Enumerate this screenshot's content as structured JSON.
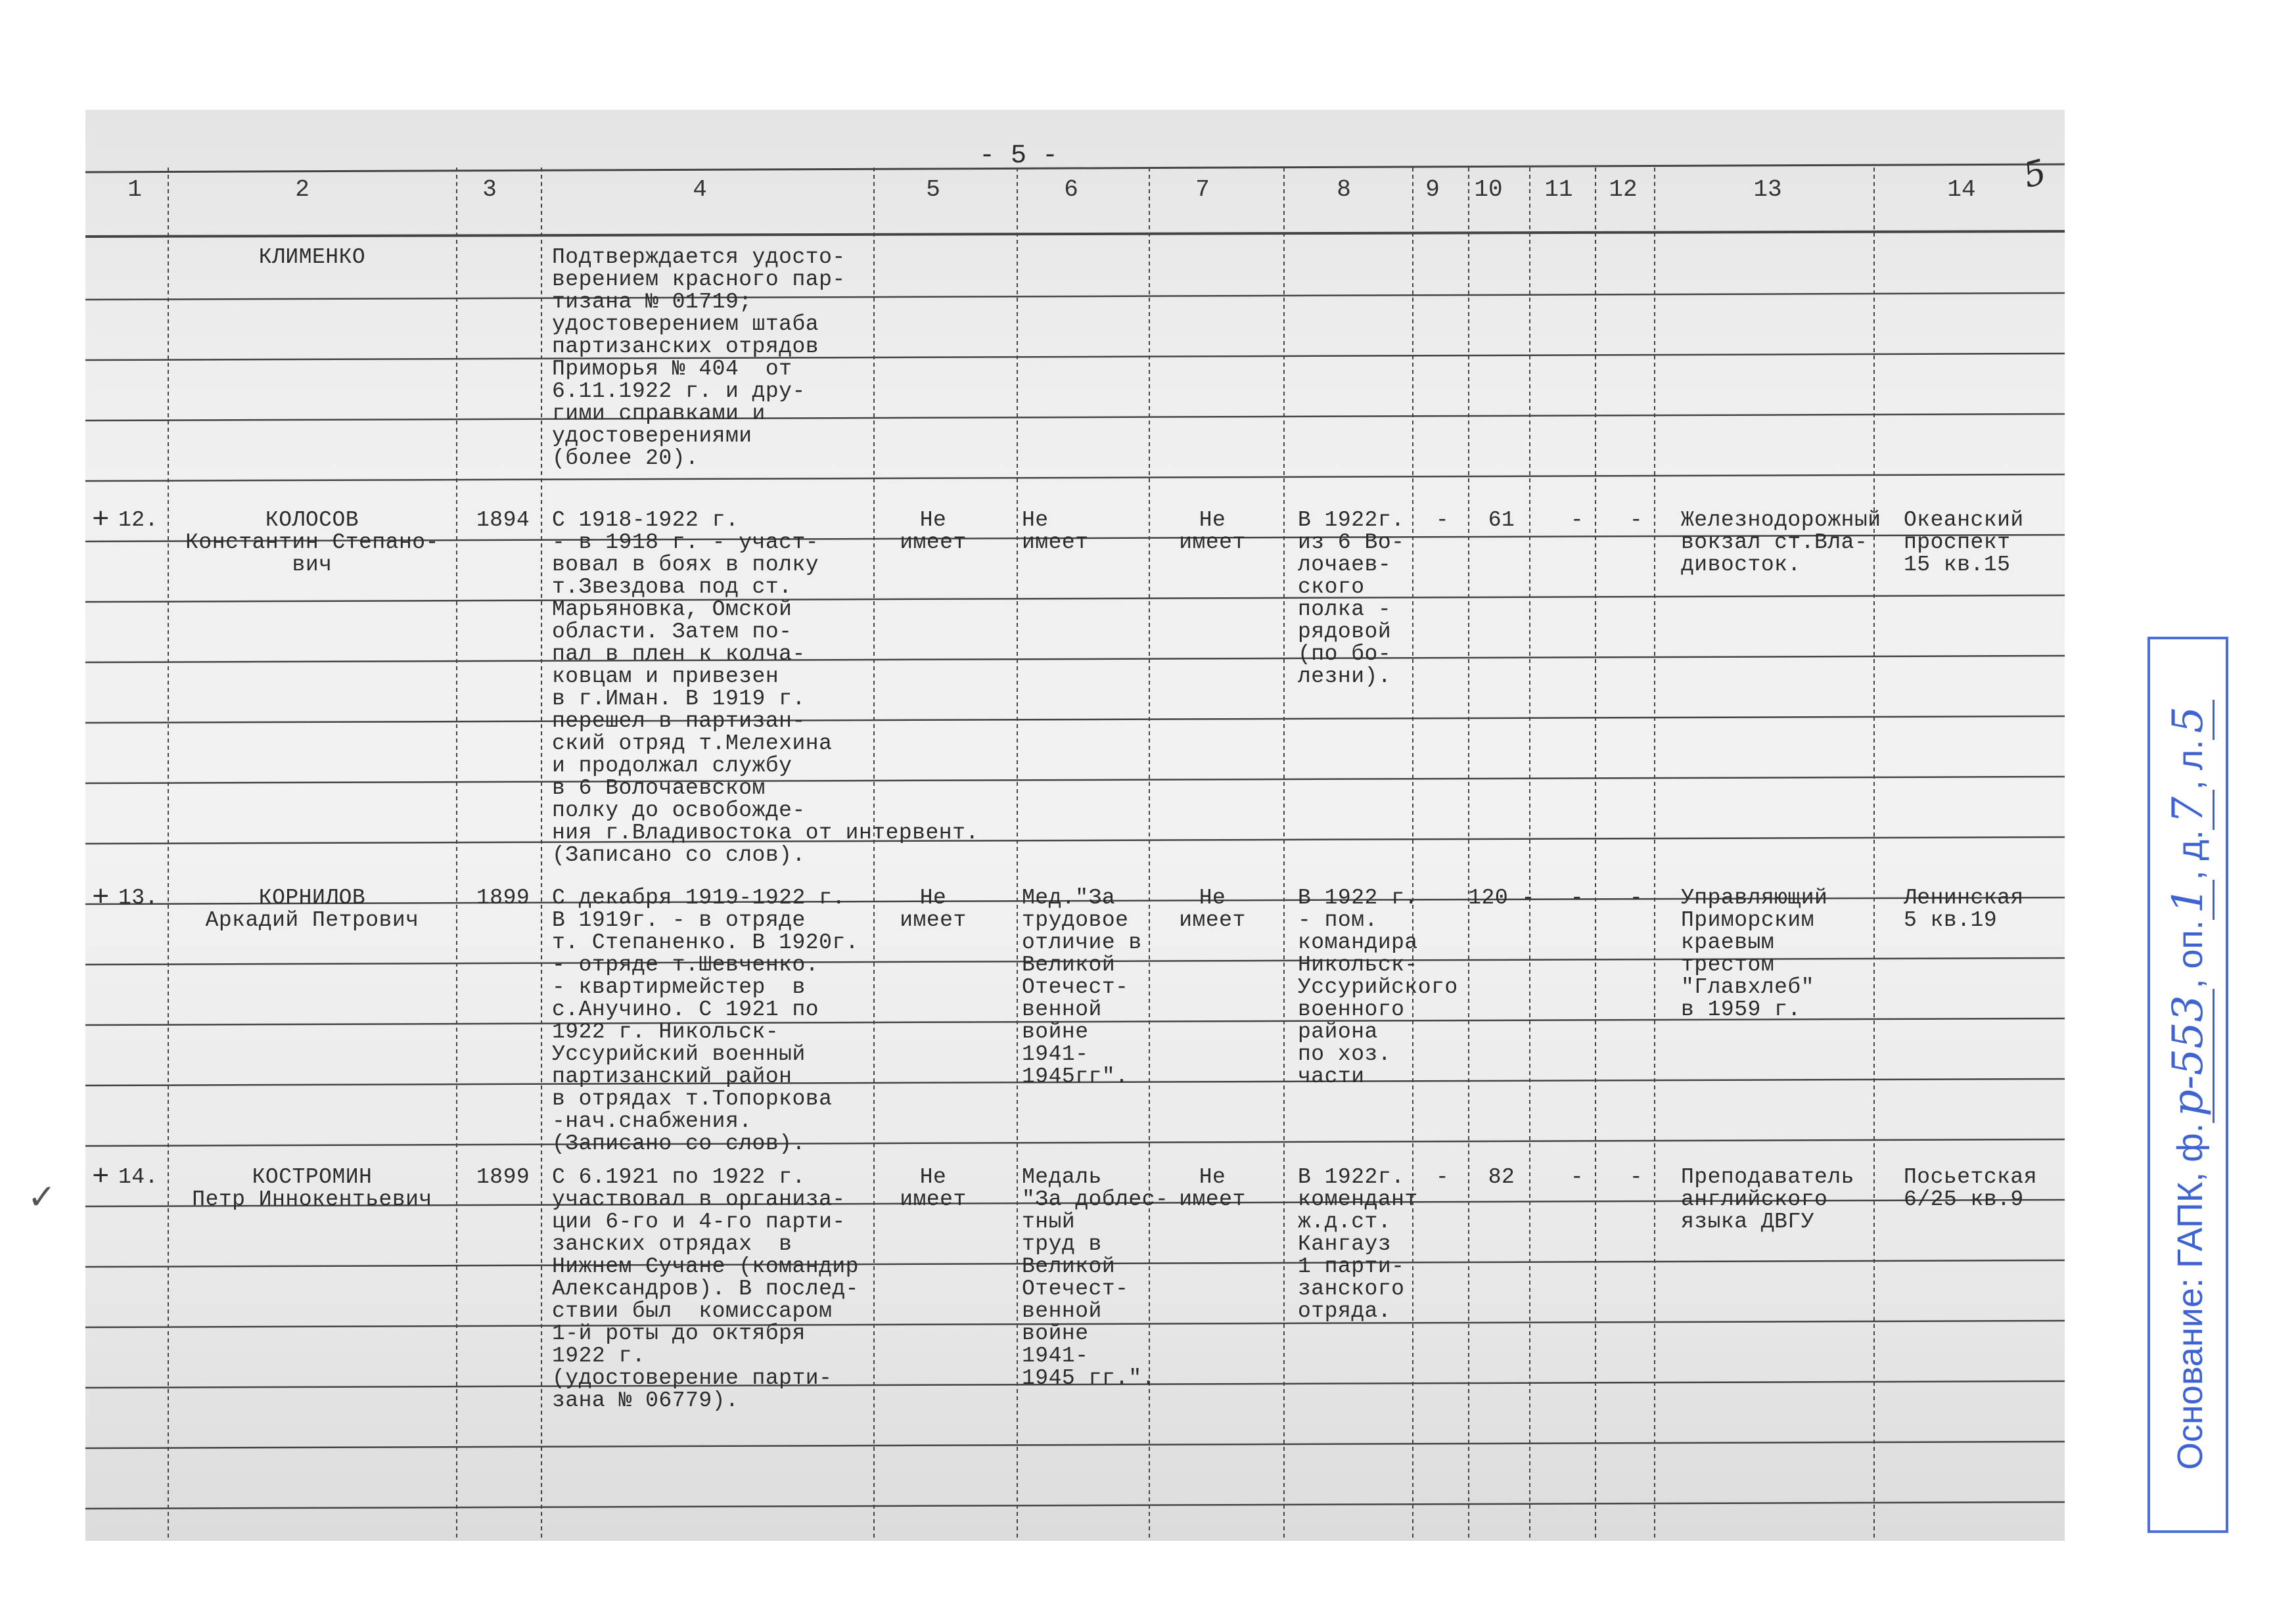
{
  "page_number": "- 5 -",
  "corner_number": "5",
  "check_mark": "✓",
  "column_headers": [
    "1",
    "2",
    "3",
    "4",
    "5",
    "6",
    "7",
    "8",
    "9",
    "10",
    "11",
    "12",
    "13",
    "14"
  ],
  "rows": [
    {
      "mark": "",
      "num": "",
      "name": "КЛИМЕНКО",
      "year": "",
      "service": "Подтверждается удосто-\nверением красного пар-\nтизана № 01719;\nудостоверением штаба\nпартизанских отрядов\nПриморья № 404  от\n6.11.1922 г. и дру-\nгими справками и\nудостоверениями\n(более 20).",
      "c5": "",
      "c6": "",
      "c7": "",
      "c8": "",
      "c9": "",
      "c10": "",
      "c11": "",
      "c12": "",
      "c13": "",
      "c14": ""
    },
    {
      "mark": "+",
      "num": "12.",
      "name": "КОЛОСОВ\nКонстантин Степано-\nвич",
      "year": "1894",
      "service": "С 1918-1922 г.\n- в 1918 г. - участ-\nвовал в боях в полку\nт.Звездова под ст.\nМарьяновка, Омской\nобласти. Затем по-\nпал в плен к колча-\nковцам и привезен\nв г.Иман. В 1919 г.\nперешел в партизан-\nский отряд т.Мелехина\nи продолжал службу\nв 6 Волочаевском\nполку до освобожде-\nния г.Владивостока от интервент.\n(Записано со слов).",
      "c5": "Не\nимеет",
      "c6": "Не\nимеет",
      "c7": "Не\nимеет",
      "c8": "В 1922г.\nиз 6 Во-\nлочаев-\nского\nполка -\nрядовой\n(по бо-\nлезни).",
      "c9": "-",
      "c10": "61",
      "c11": "-",
      "c12": "-",
      "c13": "Железнодорожный\nвокзал ст.Вла-\nдивосток.",
      "c14": "Океанский\nпроспект\n15 кв.15"
    },
    {
      "mark": "+",
      "num": "13.",
      "name": "КОРНИЛОВ\nАркадий Петрович",
      "year": "1899",
      "service": "С декабря 1919-1922 г.\nВ 1919г. - в отряде\nт. Степаненко. В 1920г.\n- отряде т.Шевченко.\n- квартирмейстер  в\nс.Анучино. С 1921 по\n1922 г. Никольск-\nУссурийский военный\nпартизанский район\nв отрядах т.Топоркова\n-нач.снабжения.\n(Записано со слов).",
      "c5": "Не\nимеет",
      "c6": "Мед.\"За\nтрудовое\nотличие в\nВеликой\nОтечест-\nвенной\nвойне\n1941-\n1945гг\".",
      "c7": "Не\nимеет",
      "c8": "В 1922 г.\n- пом.\nкомандира\nНикольск-\nУссурийского\nвоенного\nрайона\nпо хоз.\nчасти",
      "c9": "",
      "c10": "120 -",
      "c11": "-",
      "c12": "-",
      "c13": "Управляющий\nПриморским\nкраевым\nтрестом\n\"Главхлеб\"\nв 1959 г.",
      "c14": "Ленинская\n5 кв.19"
    },
    {
      "mark": "+",
      "num": "14.",
      "name": "КОСТРОМИН\nПетр Иннокентьевич",
      "year": "1899",
      "service": "С 6.1921 по 1922 г.\nучаствовал в организа-\nции 6-го и 4-го парти-\nзанских отрядах  в\nНижнем Сучане (командир\nАлександров). В послед-\nствии был  комиссаром\n1-й роты до октября\n1922 г.\n(удостоверение парти-\nзана № 06779).",
      "c5": "Не\nимеет",
      "c6": "Медаль\n\"За доблес-\nтный\nтруд в\nВеликой\nОтечест-\nвенной\nвойне\n1941-\n1945 гг.\".",
      "c7": "Не\nимеет",
      "c8": "В 1922г.\nкомендант\nж.д.ст.\nКангауз\n1 парти-\nзанского\nотряда.",
      "c9": "-",
      "c10": "82",
      "c11": "-",
      "c12": "-",
      "c13": "Преподаватель\nанглийского\nязыка ДВГУ",
      "c14": "Посьетская\n6/25 кв.9"
    }
  ],
  "stamp": {
    "prefix": "Основание: ГАПК, ф.",
    "fond": "р-553",
    "opis_label": ", оп.",
    "opis": "1",
    "delo_label": ", д.",
    "delo": "7",
    "list_label": ", л.",
    "list": "5",
    "color": "#3f63d0"
  }
}
